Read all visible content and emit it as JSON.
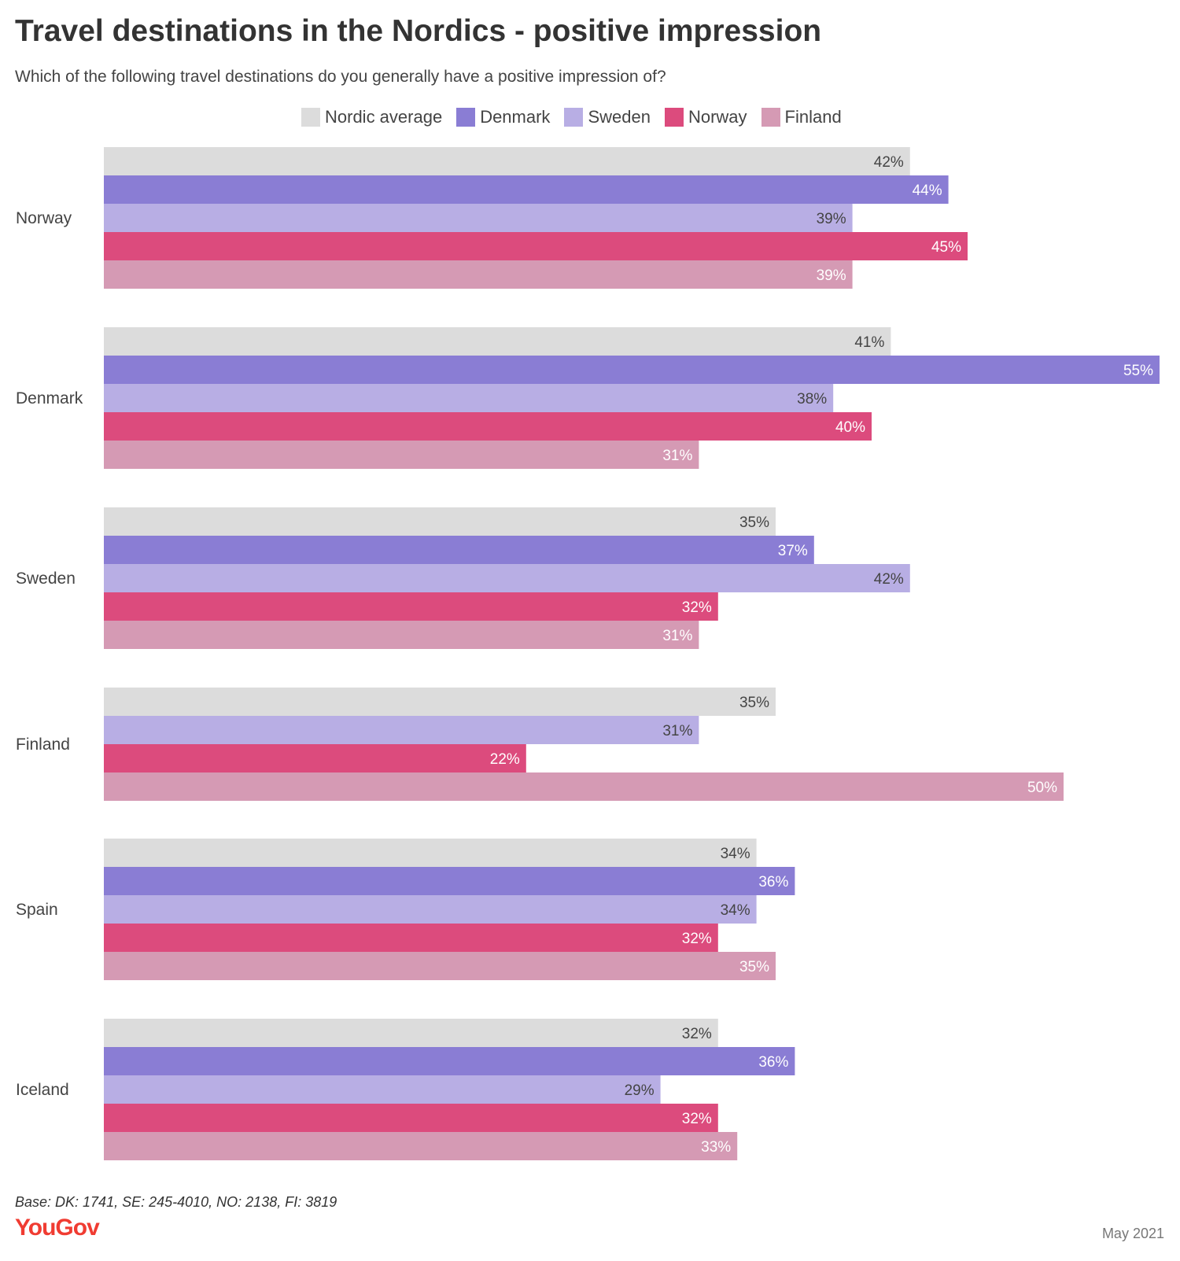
{
  "chart_data": {
    "type": "bar",
    "orientation": "horizontal",
    "title": "Travel destinations in the Nordics - positive impression",
    "subtitle": "Which of the following travel destinations do you generally have a positive impression of?",
    "xlim": [
      0,
      55
    ],
    "grid": false,
    "legend_position": "top-center",
    "series": [
      {
        "name": "Nordic average",
        "color": "#dcdcdc",
        "label_color": "#444444"
      },
      {
        "name": "Denmark",
        "color": "#8a7dd4",
        "label_color": "#ffffff"
      },
      {
        "name": "Sweden",
        "color": "#b8aee4",
        "label_color": "#444444"
      },
      {
        "name": "Norway",
        "color": "#dc4b7d",
        "label_color": "#ffffff"
      },
      {
        "name": "Finland",
        "color": "#d59ab4",
        "label_color": "#ffffff"
      }
    ],
    "categories": [
      {
        "label": "Norway",
        "bars": [
          {
            "series": "Nordic average",
            "value": 42,
            "label": "42%"
          },
          {
            "series": "Denmark",
            "value": 44,
            "label": "44%"
          },
          {
            "series": "Sweden",
            "value": 39,
            "label": "39%"
          },
          {
            "series": "Norway",
            "value": 45,
            "label": "45%"
          },
          {
            "series": "Finland",
            "value": 39,
            "label": "39%"
          }
        ]
      },
      {
        "label": "Denmark",
        "bars": [
          {
            "series": "Nordic average",
            "value": 41,
            "label": "41%"
          },
          {
            "series": "Denmark",
            "value": 55,
            "label": "55%"
          },
          {
            "series": "Sweden",
            "value": 38,
            "label": "38%"
          },
          {
            "series": "Norway",
            "value": 40,
            "label": "40%"
          },
          {
            "series": "Finland",
            "value": 31,
            "label": "31%"
          }
        ]
      },
      {
        "label": "Sweden",
        "bars": [
          {
            "series": "Nordic average",
            "value": 35,
            "label": "35%"
          },
          {
            "series": "Denmark",
            "value": 37,
            "label": "37%"
          },
          {
            "series": "Sweden",
            "value": 42,
            "label": "42%"
          },
          {
            "series": "Norway",
            "value": 32,
            "label": "32%"
          },
          {
            "series": "Finland",
            "value": 31,
            "label": "31%"
          }
        ]
      },
      {
        "label": "Finland",
        "bars": [
          {
            "series": "Nordic average",
            "value": 35,
            "label": "35%"
          },
          {
            "series": "Sweden",
            "value": 31,
            "label": "31%"
          },
          {
            "series": "Norway",
            "value": 22,
            "label": "22%"
          },
          {
            "series": "Finland",
            "value": 50,
            "label": "50%"
          }
        ]
      },
      {
        "label": "Spain",
        "bars": [
          {
            "series": "Nordic average",
            "value": 34,
            "label": "34%"
          },
          {
            "series": "Denmark",
            "value": 36,
            "label": "36%"
          },
          {
            "series": "Sweden",
            "value": 34,
            "label": "34%"
          },
          {
            "series": "Norway",
            "value": 32,
            "label": "32%"
          },
          {
            "series": "Finland",
            "value": 35,
            "label": "35%"
          }
        ]
      },
      {
        "label": "Iceland",
        "bars": [
          {
            "series": "Nordic average",
            "value": 32,
            "label": "32%"
          },
          {
            "series": "Denmark",
            "value": 36,
            "label": "36%"
          },
          {
            "series": "Sweden",
            "value": 29,
            "label": "29%"
          },
          {
            "series": "Norway",
            "value": 32,
            "label": "32%"
          },
          {
            "series": "Finland",
            "value": 33,
            "label": "33%"
          }
        ]
      }
    ]
  },
  "footer": {
    "base": "Base: DK: 1741, SE: 245-4010, NO: 2138, FI: 3819",
    "brand": "YouGov",
    "date": "May 2021"
  }
}
